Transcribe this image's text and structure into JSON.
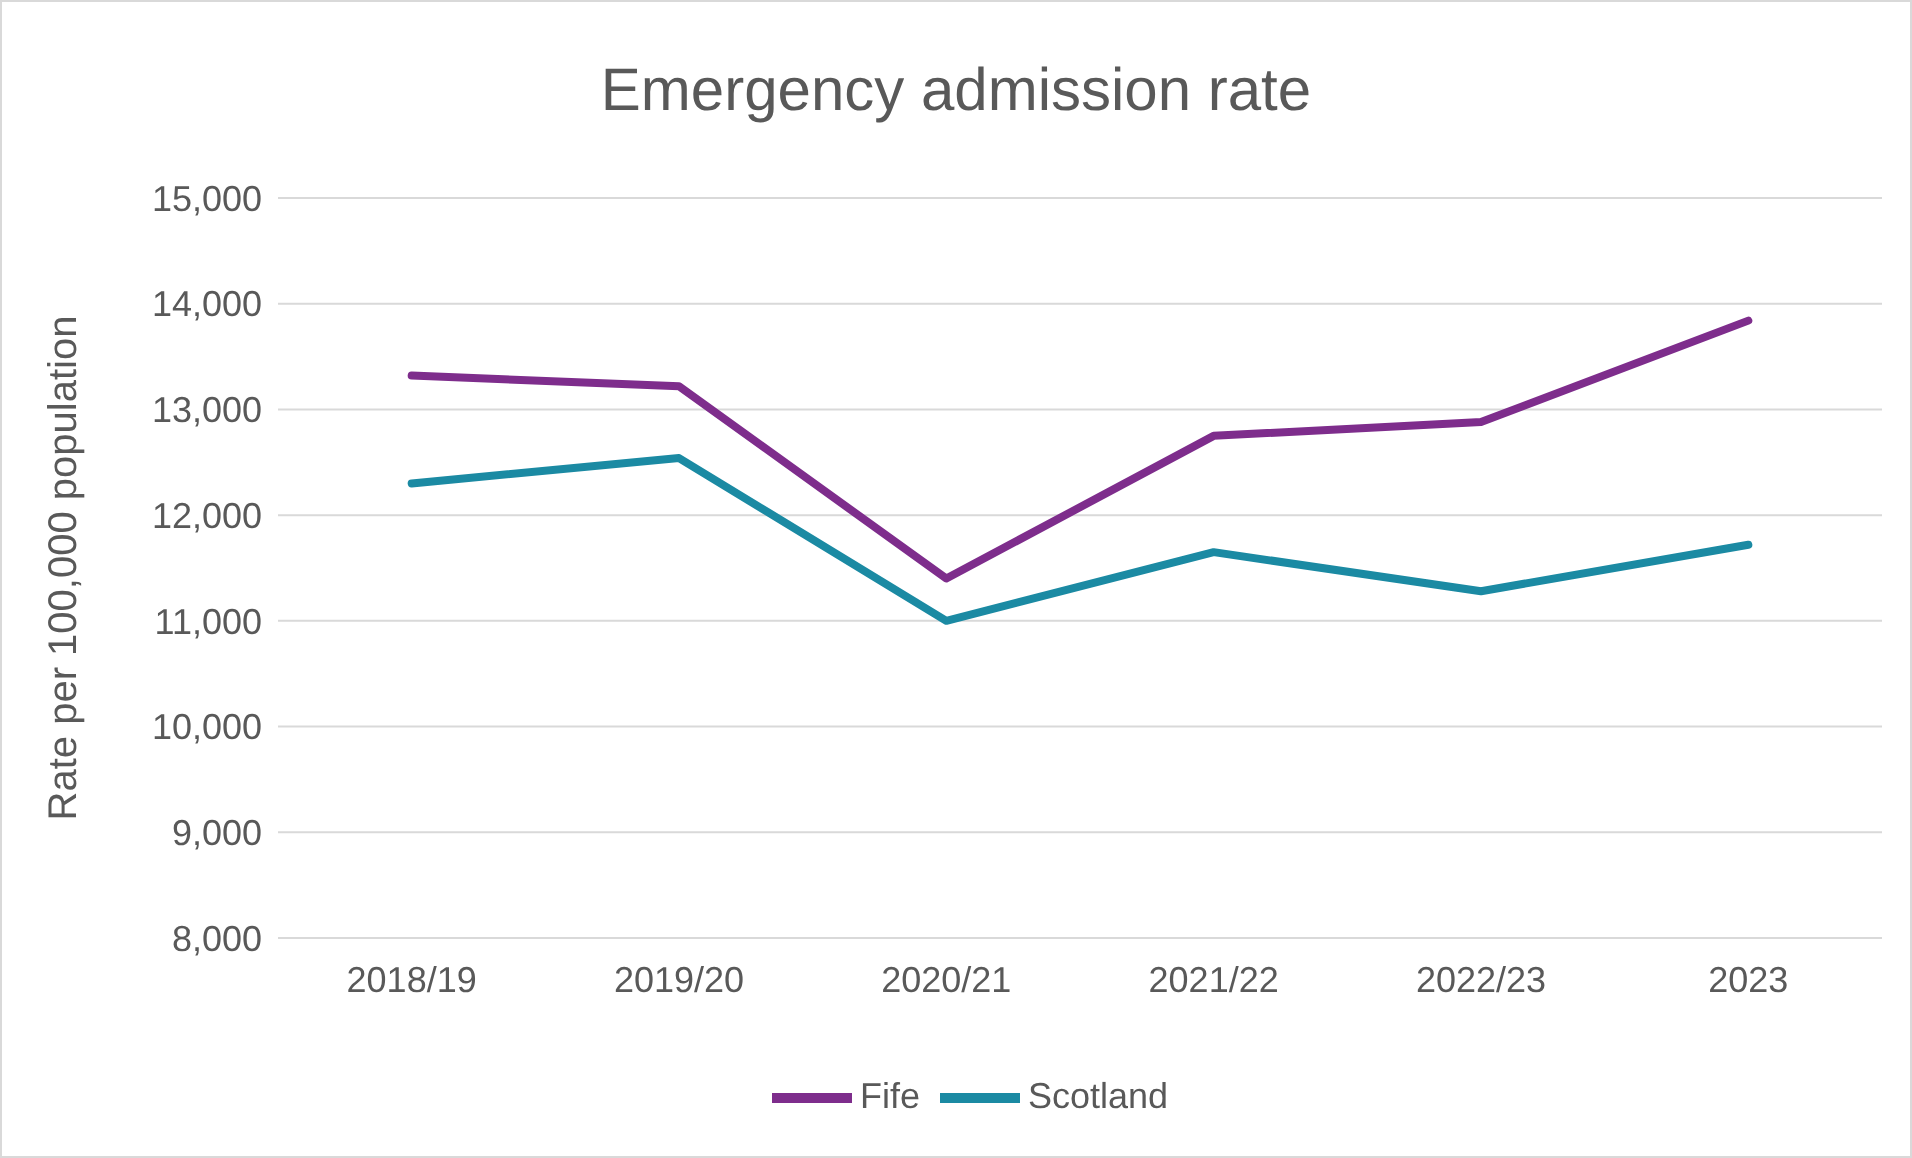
{
  "chart_data": {
    "type": "line",
    "title": "Emergency admission rate",
    "ylabel": "Rate per 100,000 population",
    "categories": [
      "2018/19",
      "2019/20",
      "2020/21",
      "2021/22",
      "2022/23",
      "2023"
    ],
    "series": [
      {
        "name": "Fife",
        "color": "#7e2d8c",
        "values": [
          13320,
          13220,
          11400,
          12750,
          12880,
          13840
        ]
      },
      {
        "name": "Scotland",
        "color": "#1b8aa3",
        "values": [
          12300,
          12540,
          11000,
          11650,
          11280,
          11720
        ]
      }
    ],
    "ylim": [
      8000,
      15000
    ],
    "yticks": [
      {
        "value": 8000,
        "label": "8,000"
      },
      {
        "value": 9000,
        "label": "9,000"
      },
      {
        "value": 10000,
        "label": "10,000"
      },
      {
        "value": 11000,
        "label": "11,000"
      },
      {
        "value": 12000,
        "label": "12,000"
      },
      {
        "value": 13000,
        "label": "13,000"
      },
      {
        "value": 14000,
        "label": "14,000"
      },
      {
        "value": 15000,
        "label": "15,000"
      }
    ],
    "grid": "y",
    "legend": "bottom"
  }
}
